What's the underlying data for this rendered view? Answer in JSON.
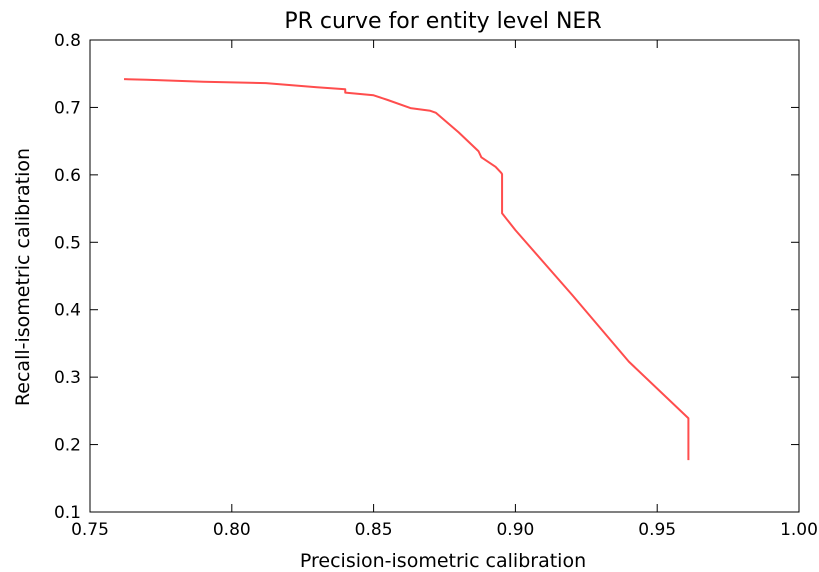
{
  "chart_data": {
    "type": "line",
    "title": "PR curve for entity level NER",
    "xlabel": "Precision-isometric calibration",
    "ylabel": "Recall-isometric calibration",
    "xlim": [
      0.75,
      1.0
    ],
    "ylim": [
      0.1,
      0.8
    ],
    "xticks": [
      0.75,
      0.8,
      0.85,
      0.9,
      0.95,
      1.0
    ],
    "xtick_labels": [
      "0.75",
      "0.80",
      "0.85",
      "0.90",
      "0.95",
      "1.00"
    ],
    "yticks": [
      0.1,
      0.2,
      0.3,
      0.4,
      0.5,
      0.6,
      0.7,
      0.8
    ],
    "ytick_labels": [
      "0.1",
      "0.2",
      "0.3",
      "0.4",
      "0.5",
      "0.6",
      "0.7",
      "0.8"
    ],
    "grid": false,
    "series": [
      {
        "color": "#ff4d4d",
        "x": [
          0.762,
          0.77,
          0.79,
          0.812,
          0.83,
          0.84,
          0.84,
          0.85,
          0.855,
          0.863,
          0.87,
          0.872,
          0.88,
          0.887,
          0.888,
          0.893,
          0.895,
          0.8953,
          0.8953,
          0.9,
          0.92,
          0.94,
          0.961,
          0.961
        ],
        "y": [
          0.742,
          0.741,
          0.738,
          0.736,
          0.73,
          0.727,
          0.722,
          0.718,
          0.711,
          0.699,
          0.695,
          0.692,
          0.663,
          0.635,
          0.626,
          0.612,
          0.603,
          0.601,
          0.543,
          0.518,
          0.422,
          0.323,
          0.239,
          0.177
        ]
      }
    ]
  }
}
